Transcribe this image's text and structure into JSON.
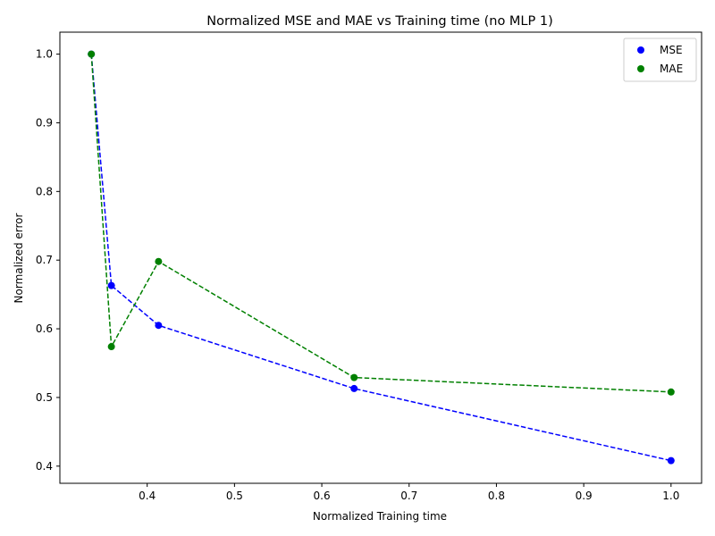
{
  "chart_data": {
    "type": "scatter",
    "title": "Normalized MSE and MAE vs Training time (no MLP 1)",
    "xlabel": "Normalized Training time",
    "ylabel": "Normalized error",
    "xlim": [
      0.3,
      1.035
    ],
    "ylim": [
      0.375,
      1.032
    ],
    "xticks": [
      0.4,
      0.5,
      0.6,
      0.7,
      0.8,
      0.9,
      1.0
    ],
    "xtick_labels": [
      "0.4",
      "0.5",
      "0.6",
      "0.7",
      "0.8",
      "0.9",
      "1.0"
    ],
    "yticks": [
      0.4,
      0.5,
      0.6,
      0.7,
      0.8,
      0.9,
      1.0
    ],
    "ytick_labels": [
      "0.4",
      "0.5",
      "0.6",
      "0.7",
      "0.8",
      "0.9",
      "1.0"
    ],
    "grid": false,
    "legend_position": "top-right",
    "series": [
      {
        "name": "MSE",
        "color": "#0000ff",
        "line_style": "dashed",
        "points": [
          {
            "x": 0.336,
            "y": 1.0
          },
          {
            "x": 0.359,
            "y": 0.663
          },
          {
            "x": 0.413,
            "y": 0.605
          },
          {
            "x": 0.637,
            "y": 0.513
          },
          {
            "x": 1.0,
            "y": 0.408
          }
        ]
      },
      {
        "name": "MAE",
        "color": "#008000",
        "line_style": "dashed",
        "points": [
          {
            "x": 0.336,
            "y": 1.0
          },
          {
            "x": 0.359,
            "y": 0.574
          },
          {
            "x": 0.413,
            "y": 0.698
          },
          {
            "x": 0.637,
            "y": 0.529
          },
          {
            "x": 1.0,
            "y": 0.508
          }
        ]
      }
    ]
  }
}
